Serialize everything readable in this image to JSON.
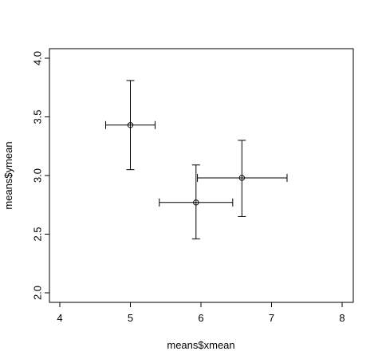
{
  "chart_data": {
    "type": "scatter",
    "xlabel": "means$xmean",
    "ylabel": "means$ymean",
    "xlim": [
      4,
      8
    ],
    "ylim": [
      2.0,
      4.0
    ],
    "x_ticks": [
      "4",
      "5",
      "6",
      "7",
      "8"
    ],
    "y_ticks": [
      "2.0",
      "2.5",
      "3.0",
      "3.5",
      "4.0"
    ],
    "grid": false,
    "legend": "none",
    "points": [
      {
        "x": 5.0,
        "y": 3.43,
        "x_low": 4.65,
        "x_high": 5.35,
        "y_low": 3.05,
        "y_high": 3.81
      },
      {
        "x": 5.93,
        "y": 2.77,
        "x_low": 5.41,
        "x_high": 6.45,
        "y_low": 2.46,
        "y_high": 3.09
      },
      {
        "x": 6.58,
        "y": 2.98,
        "x_low": 5.95,
        "x_high": 7.22,
        "y_low": 2.65,
        "y_high": 3.3
      }
    ]
  }
}
